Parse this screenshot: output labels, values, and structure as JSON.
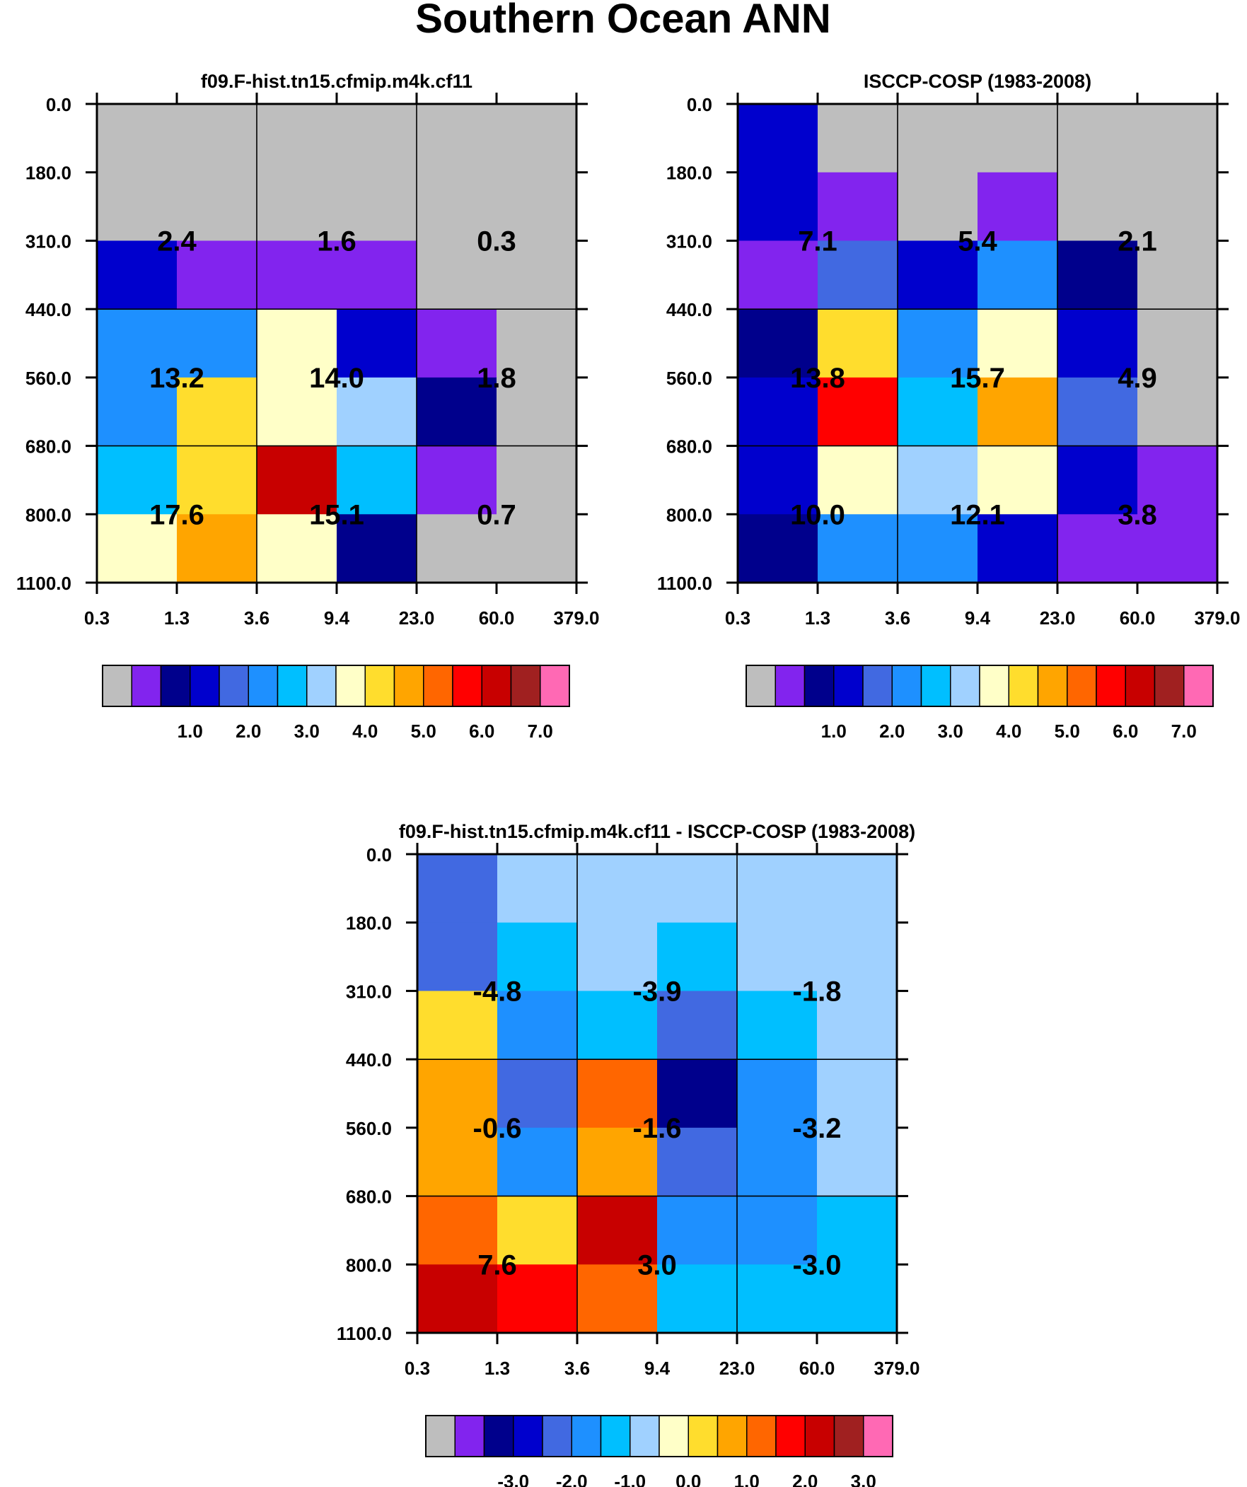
{
  "title": "Southern Ocean ANN",
  "colors": {
    "palette": [
      "#bebebe",
      "#8224ee",
      "#00008c",
      "#0000cd",
      "#4169e1",
      "#1e90ff",
      "#00bfff",
      "#a0d1ff",
      "#ffffc8",
      "#ffdd2d",
      "#ffa500",
      "#ff6600",
      "#ff0000",
      "#c80000",
      "#a02020",
      "#ff69b4"
    ],
    "frame": "#000000"
  },
  "chart_data": [
    {
      "type": "heatmap",
      "title": "f09.F-hist.tn15.cfmip.m4k.cf11",
      "xlabel": "",
      "ylabel": "",
      "x_tick_labels": [
        "0.3",
        "1.3",
        "3.6",
        "9.4",
        "23.0",
        "60.0",
        "379.0"
      ],
      "y_tick_labels": [
        "0.0",
        "180.0",
        "310.0",
        "440.0",
        "560.0",
        "680.0",
        "800.0",
        "1100.0"
      ],
      "cell_color_index": [
        [
          0,
          0,
          0,
          0,
          0,
          0
        ],
        [
          0,
          0,
          0,
          0,
          0,
          0
        ],
        [
          3,
          1,
          1,
          1,
          0,
          0
        ],
        [
          5,
          5,
          8,
          3,
          1,
          0
        ],
        [
          5,
          9,
          8,
          7,
          2,
          0
        ],
        [
          6,
          9,
          13,
          6,
          1,
          0
        ],
        [
          8,
          10,
          8,
          2,
          0,
          0
        ]
      ],
      "group_totals": [
        [
          2.4,
          1.6,
          0.3
        ],
        [
          13.2,
          14.0,
          1.8
        ],
        [
          17.6,
          15.1,
          0.7
        ]
      ],
      "group_total_labels": [
        [
          "2.4",
          "1.6",
          "0.3"
        ],
        [
          "13.2",
          "14.0",
          "1.8"
        ],
        [
          "17.6",
          "15.1",
          "0.7"
        ]
      ],
      "colorbar_levels": [
        "1.0",
        "2.0",
        "3.0",
        "4.0",
        "5.0",
        "6.0",
        "7.0"
      ]
    },
    {
      "type": "heatmap",
      "title": "ISCCP-COSP (1983-2008)",
      "xlabel": "",
      "ylabel": "",
      "x_tick_labels": [
        "0.3",
        "1.3",
        "3.6",
        "9.4",
        "23.0",
        "60.0",
        "379.0"
      ],
      "y_tick_labels": [
        "0.0",
        "180.0",
        "310.0",
        "440.0",
        "560.0",
        "680.0",
        "800.0",
        "1100.0"
      ],
      "cell_color_index": [
        [
          3,
          0,
          0,
          0,
          0,
          0
        ],
        [
          3,
          1,
          0,
          1,
          0,
          0
        ],
        [
          1,
          4,
          3,
          5,
          2,
          0
        ],
        [
          2,
          9,
          5,
          8,
          3,
          0
        ],
        [
          3,
          12,
          6,
          10,
          4,
          0
        ],
        [
          3,
          8,
          7,
          8,
          3,
          1
        ],
        [
          2,
          5,
          5,
          3,
          1,
          1
        ]
      ],
      "group_totals": [
        [
          7.1,
          5.4,
          2.1
        ],
        [
          13.8,
          15.7,
          4.9
        ],
        [
          10.0,
          12.1,
          3.8
        ]
      ],
      "group_total_labels": [
        [
          "7.1",
          "5.4",
          "2.1"
        ],
        [
          "13.8",
          "15.7",
          "4.9"
        ],
        [
          "10.0",
          "12.1",
          "3.8"
        ]
      ],
      "colorbar_levels": [
        "1.0",
        "2.0",
        "3.0",
        "4.0",
        "5.0",
        "6.0",
        "7.0"
      ]
    },
    {
      "type": "heatmap",
      "title": "f09.F-hist.tn15.cfmip.m4k.cf11 - ISCCP-COSP (1983-2008)",
      "xlabel": "",
      "ylabel": "",
      "x_tick_labels": [
        "0.3",
        "1.3",
        "3.6",
        "9.4",
        "23.0",
        "60.0",
        "379.0"
      ],
      "y_tick_labels": [
        "0.0",
        "180.0",
        "310.0",
        "440.0",
        "560.0",
        "680.0",
        "800.0",
        "1100.0"
      ],
      "cell_color_index": [
        [
          4,
          7,
          7,
          7,
          7,
          7
        ],
        [
          4,
          6,
          7,
          6,
          7,
          7
        ],
        [
          9,
          5,
          6,
          4,
          6,
          7
        ],
        [
          10,
          4,
          11,
          2,
          5,
          7
        ],
        [
          10,
          5,
          10,
          4,
          5,
          7
        ],
        [
          11,
          9,
          13,
          5,
          5,
          6
        ],
        [
          13,
          12,
          11,
          6,
          6,
          6
        ]
      ],
      "group_totals": [
        [
          -4.8,
          -3.9,
          -1.8
        ],
        [
          -0.6,
          -1.6,
          -3.2
        ],
        [
          7.6,
          3.0,
          -3.0
        ]
      ],
      "group_total_labels": [
        [
          "-4.8",
          "-3.9",
          "-1.8"
        ],
        [
          "-0.6",
          "-1.6",
          "-3.2"
        ],
        [
          "7.6",
          "3.0",
          "-3.0"
        ]
      ],
      "colorbar_levels": [
        "-3.0",
        "-2.0",
        "-1.0",
        "0.0",
        "1.0",
        "2.0",
        "3.0"
      ]
    }
  ]
}
